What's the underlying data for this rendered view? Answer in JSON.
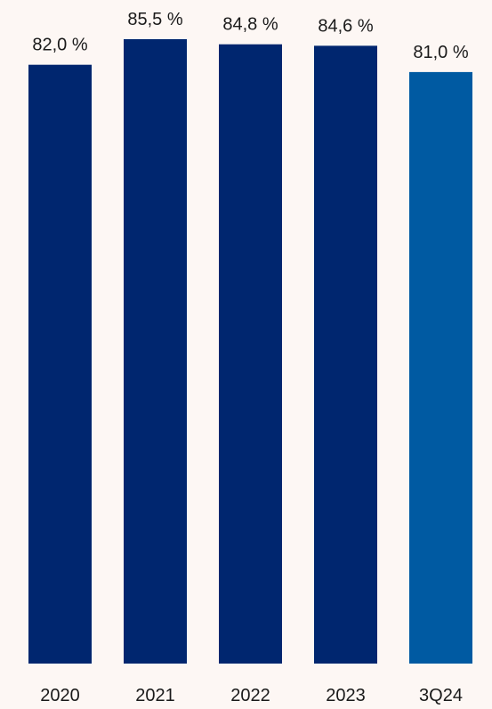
{
  "colors": {
    "background": "#fdf7f4",
    "bar_primary": "#00266f",
    "bar_highlight": "#005aa2",
    "text": "#1a1a1a"
  },
  "chart_data": {
    "type": "bar",
    "categories": [
      "2020",
      "2021",
      "2022",
      "2023",
      "3Q24"
    ],
    "values": [
      82.0,
      85.5,
      84.8,
      84.6,
      81.0
    ],
    "value_labels": [
      "82,0 %",
      "85,5 %",
      "84,8 %",
      "84,6 %",
      "81,0 %"
    ],
    "highlight_category": "3Q24",
    "title": "",
    "xlabel": "",
    "ylabel": "",
    "ylim": [
      0,
      85.5
    ],
    "grid": false,
    "legend": "none"
  }
}
